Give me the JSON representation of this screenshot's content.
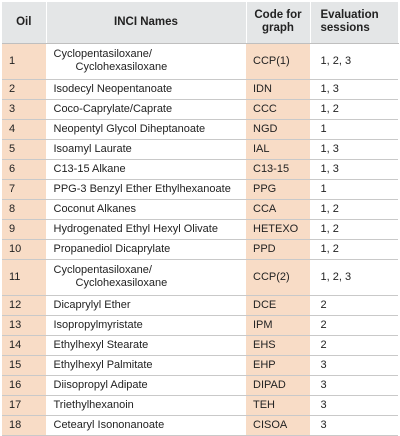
{
  "headers": {
    "oil": "Oil",
    "inci": "INCI Names",
    "code": "Code for graph",
    "eval": "Evaluation sessions"
  },
  "rows": [
    {
      "oil": "1",
      "inci": [
        "Cyclopentasiloxane/",
        "Cyclohexasiloxane"
      ],
      "code": "CCP(1)",
      "eval": "1, 2, 3"
    },
    {
      "oil": "2",
      "inci": [
        "Isodecyl Neopentanoate"
      ],
      "code": "IDN",
      "eval": "1, 3"
    },
    {
      "oil": "3",
      "inci": [
        "Coco-Caprylate/Caprate"
      ],
      "code": "CCC",
      "eval": "1, 2"
    },
    {
      "oil": "4",
      "inci": [
        "Neopentyl Glycol Diheptanoate"
      ],
      "code": "NGD",
      "eval": "1"
    },
    {
      "oil": "5",
      "inci": [
        "Isoamyl Laurate"
      ],
      "code": "IAL",
      "eval": "1, 3"
    },
    {
      "oil": "6",
      "inci": [
        "C13-15 Alkane"
      ],
      "code": "C13-15",
      "eval": "1, 3"
    },
    {
      "oil": "7",
      "inci": [
        "PPG-3 Benzyl Ether Ethylhexanoate"
      ],
      "code": "PPG",
      "eval": "1"
    },
    {
      "oil": "8",
      "inci": [
        "Coconut Alkanes"
      ],
      "code": "CCA",
      "eval": "1, 2"
    },
    {
      "oil": "9",
      "inci": [
        "Hydrogenated Ethyl Hexyl Olivate"
      ],
      "code": "HETEXO",
      "eval": "1, 2"
    },
    {
      "oil": "10",
      "inci": [
        "Propanediol Dicaprylate"
      ],
      "code": "PPD",
      "eval": "1, 2"
    },
    {
      "oil": "11",
      "inci": [
        "Cyclopentasiloxane/",
        "Cyclohexasiloxane"
      ],
      "code": "CCP(2)",
      "eval": "1, 2, 3"
    },
    {
      "oil": "12",
      "inci": [
        "Dicaprylyl Ether"
      ],
      "code": "DCE",
      "eval": "2"
    },
    {
      "oil": "13",
      "inci": [
        "Isopropylmyristate"
      ],
      "code": "IPM",
      "eval": "2"
    },
    {
      "oil": "14",
      "inci": [
        "Ethylhexyl Stearate"
      ],
      "code": "EHS",
      "eval": "2"
    },
    {
      "oil": "15",
      "inci": [
        "Ethylhexyl Palmitate"
      ],
      "code": "EHP",
      "eval": "3"
    },
    {
      "oil": "16",
      "inci": [
        "Diisopropyl Adipate"
      ],
      "code": "DIPAD",
      "eval": "3"
    },
    {
      "oil": "17",
      "inci": [
        "Triethylhexanoin"
      ],
      "code": "TEH",
      "eval": "3"
    },
    {
      "oil": "18",
      "inci": [
        "Cetearyl Isononanoate"
      ],
      "code": "CISOA",
      "eval": "3"
    }
  ]
}
